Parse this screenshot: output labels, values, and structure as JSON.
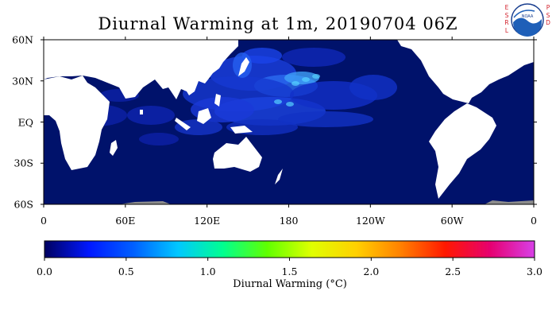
{
  "title": "Diurnal Warming at 1m, 20190704 06Z",
  "logo": {
    "letters_left": [
      "E",
      "S",
      "R",
      "L"
    ],
    "letters_right": [
      "P",
      "S",
      "D"
    ],
    "emblem_text": "NOAA"
  },
  "map": {
    "lat_labels": [
      {
        "text": "60N",
        "lat": 60
      },
      {
        "text": "30N",
        "lat": 30
      },
      {
        "text": "EQ",
        "lat": 0
      },
      {
        "text": "30S",
        "lat": -30
      },
      {
        "text": "60S",
        "lat": -60
      }
    ],
    "lon_labels": [
      {
        "text": "0",
        "lon": 0
      },
      {
        "text": "60E",
        "lon": 60
      },
      {
        "text": "120E",
        "lon": 120
      },
      {
        "text": "180",
        "lon": 180
      },
      {
        "text": "120W",
        "lon": 240
      },
      {
        "text": "60W",
        "lon": 300
      },
      {
        "text": "0",
        "lon": 360
      }
    ],
    "lat_range": [
      -60,
      60
    ],
    "lon_range": [
      0,
      360
    ],
    "ocean_color": "#00126b",
    "land_color": "#ffffff",
    "ice_color": "#8c8c8c"
  },
  "colorbar": {
    "title": "Diurnal Warming (°C)",
    "min": 0.0,
    "max": 3.0,
    "tick_labels": [
      "0.0",
      "0.5",
      "1.0",
      "1.5",
      "2.0",
      "2.5",
      "3.0"
    ],
    "colors": [
      "#000060",
      "#0018ff",
      "#0060ff",
      "#00c8ff",
      "#00ff90",
      "#60ff00",
      "#e0ff00",
      "#ffd000",
      "#ff8000",
      "#ff1800",
      "#e60070",
      "#d840e8"
    ]
  }
}
